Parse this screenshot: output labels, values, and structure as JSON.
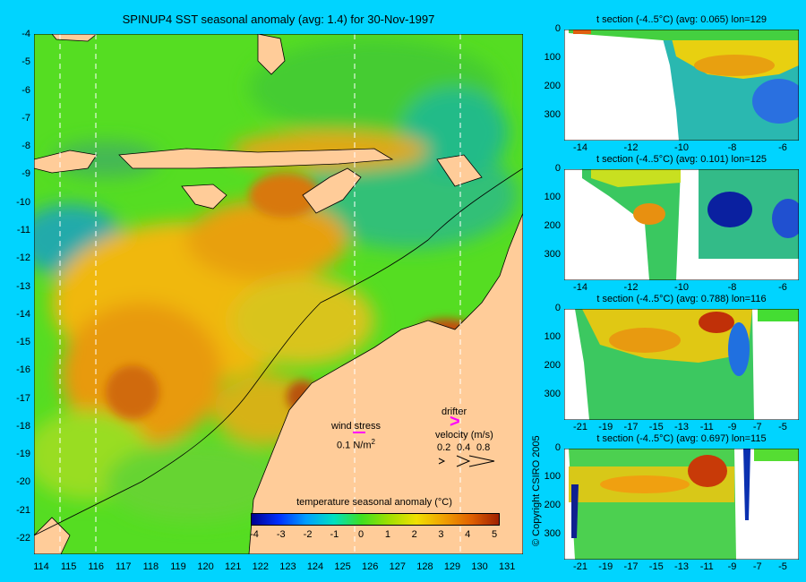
{
  "main_map": {
    "title": "SPINUP4 SST seasonal anomaly (avg: 1.4) for 30-Nov-1997",
    "lat_ticks": [
      "-4",
      "-5",
      "-6",
      "-7",
      "-8",
      "-9",
      "-10",
      "-11",
      "-12",
      "-13",
      "-14",
      "-15",
      "-16",
      "-17",
      "-18",
      "-19",
      "-20",
      "-21",
      "-22"
    ],
    "lon_ticks": [
      "114",
      "115",
      "116",
      "117",
      "118",
      "119",
      "120",
      "121",
      "122",
      "123",
      "124",
      "125",
      "126",
      "127",
      "128",
      "129",
      "130",
      "131"
    ],
    "colorbar": {
      "title": "temperature seasonal anomaly (°C)",
      "ticks": [
        "-4",
        "-3",
        "-2",
        "-1",
        "0",
        "1",
        "2",
        "3",
        "4",
        "5"
      ]
    },
    "wind_stress": {
      "label": "wind stress",
      "value": "0.1 N/m",
      "superscript": "2"
    },
    "drifter": {
      "label": "drifter"
    },
    "velocity": {
      "label": "velocity (m/s)",
      "values": [
        "0.2",
        "0.4",
        "0.8"
      ]
    }
  },
  "copyright": "© Copyright CSIRO 2005",
  "sections": [
    {
      "title": "t section (-4..5°C) (avg: 0.065) lon=129",
      "depth_ticks": [
        "0",
        "100",
        "200",
        "300"
      ],
      "x_ticks": [
        "-14",
        "-12",
        "-10",
        "-8",
        "-6"
      ]
    },
    {
      "title": "t section (-4..5°C) (avg: 0.101) lon=125",
      "depth_ticks": [
        "0",
        "100",
        "200",
        "300"
      ],
      "x_ticks": [
        "-14",
        "-12",
        "-10",
        "-8",
        "-6"
      ]
    },
    {
      "title": "t section (-4..5°C) (avg: 0.788) lon=116",
      "depth_ticks": [
        "0",
        "100",
        "200",
        "300"
      ],
      "x_ticks": [
        "-21",
        "-19",
        "-17",
        "-15",
        "-13",
        "-11",
        "-9",
        "-7",
        "-5"
      ]
    },
    {
      "title": "t section (-4..5°C) (avg: 0.697) lon=115",
      "depth_ticks": [
        "0",
        "100",
        "200",
        "300"
      ],
      "x_ticks": [
        "-21",
        "-19",
        "-17",
        "-15",
        "-13",
        "-11",
        "-9",
        "-7",
        "-5"
      ]
    }
  ],
  "colors": {
    "background": "#00d4ff",
    "land": "#ffcc99",
    "ocean_base": "#55dd22"
  }
}
